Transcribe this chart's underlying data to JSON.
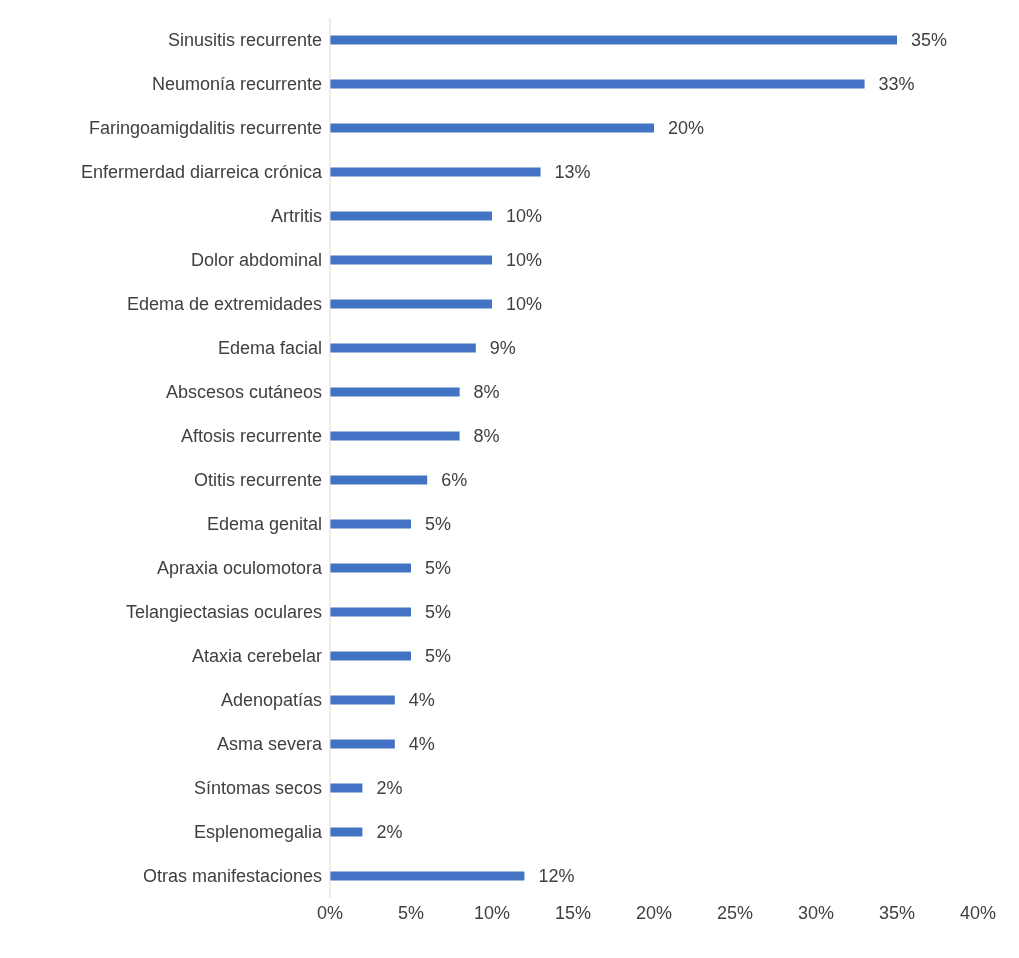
{
  "chart_data": {
    "type": "bar",
    "orientation": "horizontal",
    "categories": [
      "Sinusitis recurrente",
      "Neumonía recurrente",
      "Faringoamigdalitis recurrente",
      "Enfermerdad diarreica crónica",
      "Artritis",
      "Dolor abdominal",
      "Edema de extremidades",
      "Edema facial",
      "Abscesos cutáneos",
      "Aftosis recurrente",
      "Otitis recurrente",
      "Edema genital",
      "Apraxia oculomotora",
      "Telangiectasias oculares",
      "Ataxia cerebelar",
      "Adenopatías",
      "Asma severa",
      "Síntomas secos",
      "Esplenomegalia",
      "Otras manifestaciones"
    ],
    "values": [
      35,
      33,
      20,
      13,
      10,
      10,
      10,
      9,
      8,
      8,
      6,
      5,
      5,
      5,
      5,
      4,
      4,
      2,
      2,
      12
    ],
    "value_labels": [
      "35%",
      "33%",
      "20%",
      "13%",
      "10%",
      "10%",
      "10%",
      "9%",
      "8%",
      "8%",
      "6%",
      "5%",
      "5%",
      "5%",
      "5%",
      "4%",
      "4%",
      "2%",
      "2%",
      "12%"
    ],
    "color": "#4472c4",
    "xlim": [
      0,
      40
    ],
    "xticks": [
      {
        "value": 0,
        "label": "0%"
      },
      {
        "value": 5,
        "label": "5%"
      },
      {
        "value": 10,
        "label": "10%"
      },
      {
        "value": 15,
        "label": "15%"
      },
      {
        "value": 20,
        "label": "20%"
      },
      {
        "value": 25,
        "label": "25%"
      },
      {
        "value": 30,
        "label": "30%"
      },
      {
        "value": 35,
        "label": "35%"
      },
      {
        "value": 40,
        "label": "40%"
      }
    ],
    "grid": false,
    "legend": false
  }
}
